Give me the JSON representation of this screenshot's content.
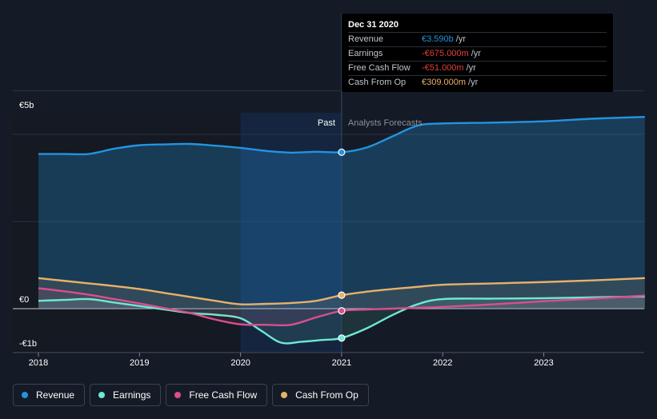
{
  "chart_data": {
    "type": "line",
    "y_ticks": [
      {
        "value": 5,
        "label": "€5b"
      },
      {
        "value": 0,
        "label": "€0"
      },
      {
        "value": -1,
        "label": "-€1b"
      }
    ],
    "ylim": [
      -1,
      5
    ],
    "xlim": [
      2018,
      2024
    ],
    "x_ticks": [
      {
        "value": 2018,
        "label": "2018"
      },
      {
        "value": 2019,
        "label": "2019"
      },
      {
        "value": 2020,
        "label": "2020"
      },
      {
        "value": 2021,
        "label": "2021"
      },
      {
        "value": 2022,
        "label": "2022"
      },
      {
        "value": 2023,
        "label": "2023"
      }
    ],
    "divider_x": 2021,
    "past_label": "Past",
    "forecast_label": "Analysts Forecasts",
    "series": [
      {
        "name": "Revenue",
        "color": "#2394df",
        "fill": true,
        "x": [
          2018.0,
          2018.25,
          2018.5,
          2018.75,
          2019.0,
          2019.25,
          2019.5,
          2019.75,
          2020.0,
          2020.25,
          2020.5,
          2020.75,
          2021.0,
          2021.25,
          2021.5,
          2021.75,
          2022.0,
          2022.5,
          2023.0,
          2023.5,
          2024.0
        ],
        "y": [
          3.55,
          3.55,
          3.55,
          3.67,
          3.75,
          3.77,
          3.78,
          3.74,
          3.69,
          3.62,
          3.58,
          3.6,
          3.59,
          3.7,
          3.95,
          4.2,
          4.25,
          4.27,
          4.3,
          4.36,
          4.4
        ]
      },
      {
        "name": "Earnings",
        "color": "#6ee8d3",
        "fill": false,
        "x": [
          2018.0,
          2018.25,
          2018.5,
          2018.75,
          2019.0,
          2019.25,
          2019.5,
          2019.75,
          2020.0,
          2020.2,
          2020.4,
          2020.6,
          2020.8,
          2021.0,
          2021.25,
          2021.5,
          2021.75,
          2022.0,
          2022.5,
          2023.0,
          2023.5,
          2024.0
        ],
        "y": [
          0.18,
          0.2,
          0.22,
          0.14,
          0.06,
          -0.02,
          -0.1,
          -0.14,
          -0.22,
          -0.5,
          -0.78,
          -0.76,
          -0.72,
          -0.675,
          -0.45,
          -0.15,
          0.1,
          0.22,
          0.23,
          0.24,
          0.26,
          0.28
        ]
      },
      {
        "name": "Free Cash Flow",
        "color": "#d94f8c",
        "fill": false,
        "x": [
          2018.0,
          2018.25,
          2018.5,
          2018.75,
          2019.0,
          2019.25,
          2019.5,
          2019.75,
          2020.0,
          2020.25,
          2020.5,
          2020.75,
          2021.0,
          2021.25,
          2021.5,
          2021.75,
          2022.0,
          2022.5,
          2023.0,
          2023.5,
          2024.0
        ],
        "y": [
          0.47,
          0.4,
          0.32,
          0.22,
          0.12,
          0.01,
          -0.1,
          -0.25,
          -0.36,
          -0.37,
          -0.37,
          -0.2,
          -0.051,
          -0.02,
          0.0,
          0.02,
          0.04,
          0.1,
          0.17,
          0.23,
          0.3
        ]
      },
      {
        "name": "Cash From Op",
        "color": "#e8b16a",
        "fill": false,
        "x": [
          2018.0,
          2018.25,
          2018.5,
          2018.75,
          2019.0,
          2019.25,
          2019.5,
          2019.75,
          2020.0,
          2020.25,
          2020.5,
          2020.75,
          2021.0,
          2021.25,
          2021.5,
          2021.75,
          2022.0,
          2022.5,
          2023.0,
          2023.5,
          2024.0
        ],
        "y": [
          0.7,
          0.64,
          0.58,
          0.52,
          0.45,
          0.36,
          0.27,
          0.18,
          0.1,
          0.11,
          0.13,
          0.18,
          0.309,
          0.39,
          0.45,
          0.5,
          0.55,
          0.58,
          0.61,
          0.65,
          0.7
        ]
      }
    ]
  },
  "tooltip": {
    "title": "Dec 31 2020",
    "rows": [
      {
        "label": "Revenue",
        "value": "€3.590b",
        "unit": "/yr",
        "color": "#2394df"
      },
      {
        "label": "Earnings",
        "value": "-€675.000m",
        "unit": "/yr",
        "color": "#e0413a"
      },
      {
        "label": "Free Cash Flow",
        "value": "-€51.000m",
        "unit": "/yr",
        "color": "#e0413a"
      },
      {
        "label": "Cash From Op",
        "value": "€309.000m",
        "unit": "/yr",
        "color": "#e8b16a"
      }
    ]
  },
  "legend": [
    {
      "label": "Revenue",
      "color": "#2394df"
    },
    {
      "label": "Earnings",
      "color": "#6ee8d3"
    },
    {
      "label": "Free Cash Flow",
      "color": "#d94f8c"
    },
    {
      "label": "Cash From Op",
      "color": "#e8b16a"
    }
  ]
}
